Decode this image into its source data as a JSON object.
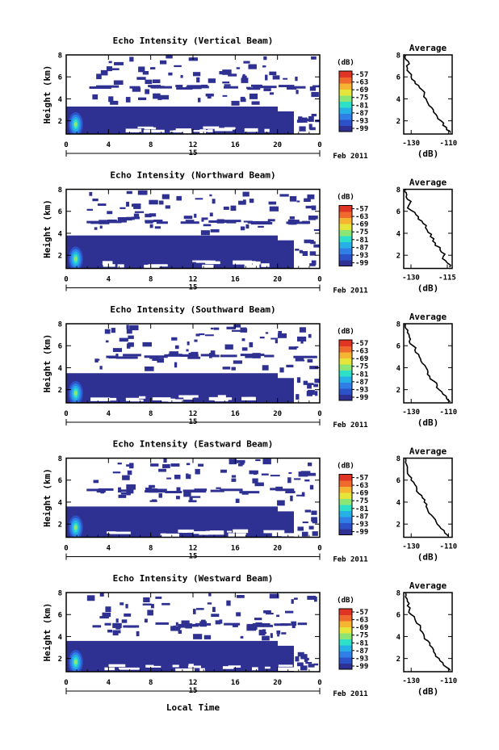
{
  "figure": {
    "xlabel": "Local Time",
    "date_label": "Feb 2011",
    "day_label": "15",
    "colorbar_unit": "(dB)",
    "colormap": [
      "#2e3192",
      "#2b52c8",
      "#2f7fe6",
      "#25b0e6",
      "#2ee0c8",
      "#8ce676",
      "#e6e63a",
      "#f5b431",
      "#f06a2d",
      "#e03424"
    ]
  },
  "chart_data": [
    {
      "type": "heatmap",
      "title": "Echo Intensity (Vertical Beam)",
      "ylabel": "Height (km)",
      "x_ticks": [
        "0",
        "4",
        "8",
        "12",
        "16",
        "20",
        "0"
      ],
      "y_ticks": [
        "2",
        "4",
        "6",
        "8"
      ],
      "xlim": [
        0,
        24
      ],
      "ylim": [
        0.8,
        8
      ],
      "colorbar_ticks": [
        "-57",
        "-63",
        "-69",
        "-75",
        "-81",
        "-87",
        "-93",
        "-99"
      ],
      "layer_top_km": 3.3,
      "average": {
        "title": "Average",
        "xlabel": "(dB)",
        "x_ticks": [
          "-130",
          "-110"
        ],
        "xlim": [
          -134,
          -108
        ],
        "y_ticks": [
          "2",
          "4",
          "6",
          "8"
        ],
        "height_km": [
          0.9,
          1.2,
          1.6,
          2.0,
          2.4,
          2.8,
          3.2,
          3.6,
          4.0,
          4.4,
          4.8,
          5.2,
          5.6,
          6.0,
          6.4,
          6.8,
          7.2,
          7.6,
          8.0
        ],
        "db": [
          -109,
          -111,
          -113,
          -114,
          -116,
          -118,
          -119,
          -121,
          -122,
          -123,
          -124,
          -126,
          -128,
          -130,
          -131,
          -132,
          -131,
          -133,
          -133
        ]
      }
    },
    {
      "type": "heatmap",
      "title": "Echo Intensity (Northward Beam)",
      "ylabel": "Height (km)",
      "x_ticks": [
        "0",
        "4",
        "8",
        "12",
        "16",
        "20",
        "0"
      ],
      "y_ticks": [
        "2",
        "4",
        "6",
        "8"
      ],
      "xlim": [
        0,
        24
      ],
      "ylim": [
        0.8,
        8
      ],
      "colorbar_ticks": [
        "-57",
        "-63",
        "-69",
        "-75",
        "-81",
        "-87",
        "-93",
        "-99"
      ],
      "layer_top_km": 3.8,
      "average": {
        "title": "Average",
        "xlabel": "(dB)",
        "x_ticks": [
          "-130",
          "-115"
        ],
        "xlim": [
          -133,
          -113
        ],
        "y_ticks": [
          "2",
          "4",
          "6",
          "8"
        ],
        "height_km": [
          0.9,
          1.3,
          1.7,
          2.1,
          2.5,
          2.9,
          3.3,
          3.7,
          4.1,
          4.5,
          4.9,
          5.3,
          5.7,
          6.1,
          6.5,
          6.9,
          7.3,
          7.7,
          8.0
        ],
        "db": [
          -114,
          -115,
          -117,
          -116,
          -118,
          -120,
          -121,
          -122,
          -123,
          -124,
          -125,
          -127,
          -128,
          -130,
          -131,
          -130,
          -132,
          -132,
          -132
        ]
      }
    },
    {
      "type": "heatmap",
      "title": "Echo Intensity (Southward Beam)",
      "ylabel": "Height (km)",
      "x_ticks": [
        "0",
        "4",
        "8",
        "12",
        "16",
        "20",
        "0"
      ],
      "y_ticks": [
        "2",
        "4",
        "6",
        "8"
      ],
      "xlim": [
        0,
        24
      ],
      "ylim": [
        0.8,
        8
      ],
      "colorbar_ticks": [
        "-57",
        "-63",
        "-69",
        "-75",
        "-81",
        "-87",
        "-93",
        "-99"
      ],
      "layer_top_km": 3.5,
      "average": {
        "title": "Average",
        "xlabel": "(dB)",
        "x_ticks": [
          "-130",
          "-110"
        ],
        "xlim": [
          -134,
          -108
        ],
        "y_ticks": [
          "2",
          "4",
          "6",
          "8"
        ],
        "height_km": [
          0.9,
          1.2,
          1.6,
          2.0,
          2.4,
          2.8,
          3.2,
          3.6,
          4.0,
          4.4,
          4.8,
          5.2,
          5.6,
          6.0,
          6.4,
          6.8,
          7.2,
          7.6,
          8.0
        ],
        "db": [
          -109,
          -111,
          -113,
          -115,
          -116,
          -118,
          -120,
          -121,
          -122,
          -124,
          -125,
          -126,
          -128,
          -129,
          -131,
          -131,
          -132,
          -133,
          -133
        ]
      }
    },
    {
      "type": "heatmap",
      "title": "Echo Intensity (Eastward Beam)",
      "ylabel": "Height (km)",
      "x_ticks": [
        "0",
        "4",
        "8",
        "12",
        "16",
        "20",
        "0"
      ],
      "y_ticks": [
        "2",
        "4",
        "6",
        "8"
      ],
      "xlim": [
        0,
        24
      ],
      "ylim": [
        0.8,
        8
      ],
      "colorbar_ticks": [
        "-57",
        "-63",
        "-69",
        "-75",
        "-81",
        "-87",
        "-93",
        "-99"
      ],
      "layer_top_km": 3.6,
      "average": {
        "title": "Average",
        "xlabel": "(dB)",
        "x_ticks": [
          "-130",
          "-110"
        ],
        "xlim": [
          -134,
          -108
        ],
        "y_ticks": [
          "2",
          "4",
          "6",
          "8"
        ],
        "height_km": [
          0.9,
          1.2,
          1.6,
          2.0,
          2.4,
          2.8,
          3.2,
          3.6,
          4.0,
          4.4,
          4.8,
          5.2,
          5.6,
          6.0,
          6.4,
          6.8,
          7.2,
          7.6,
          8.0
        ],
        "db": [
          -110,
          -112,
          -114,
          -116,
          -117,
          -119,
          -121,
          -122,
          -123,
          -124,
          -126,
          -127,
          -128,
          -130,
          -131,
          -132,
          -132,
          -133,
          -133
        ]
      }
    },
    {
      "type": "heatmap",
      "title": "Echo Intensity (Westward Beam)",
      "ylabel": "Height (km)",
      "x_ticks": [
        "0",
        "4",
        "8",
        "12",
        "16",
        "20",
        "0"
      ],
      "y_ticks": [
        "2",
        "4",
        "6",
        "8"
      ],
      "xlim": [
        0,
        24
      ],
      "ylim": [
        0.8,
        8
      ],
      "colorbar_ticks": [
        "-57",
        "-63",
        "-69",
        "-75",
        "-81",
        "-87",
        "-93",
        "-99"
      ],
      "layer_top_km": 3.6,
      "average": {
        "title": "Average",
        "xlabel": "(dB)",
        "x_ticks": [
          "-130",
          "-110"
        ],
        "xlim": [
          -134,
          -108
        ],
        "y_ticks": [
          "2",
          "4",
          "6",
          "8"
        ],
        "height_km": [
          0.9,
          1.2,
          1.6,
          2.0,
          2.4,
          2.8,
          3.2,
          3.6,
          4.0,
          4.4,
          4.8,
          5.2,
          5.6,
          6.0,
          6.4,
          6.8,
          7.2,
          7.6,
          8.0
        ],
        "db": [
          -109,
          -111,
          -113,
          -115,
          -117,
          -118,
          -120,
          -121,
          -123,
          -124,
          -125,
          -127,
          -128,
          -130,
          -131,
          -132,
          -132,
          -133,
          -133
        ]
      }
    }
  ]
}
